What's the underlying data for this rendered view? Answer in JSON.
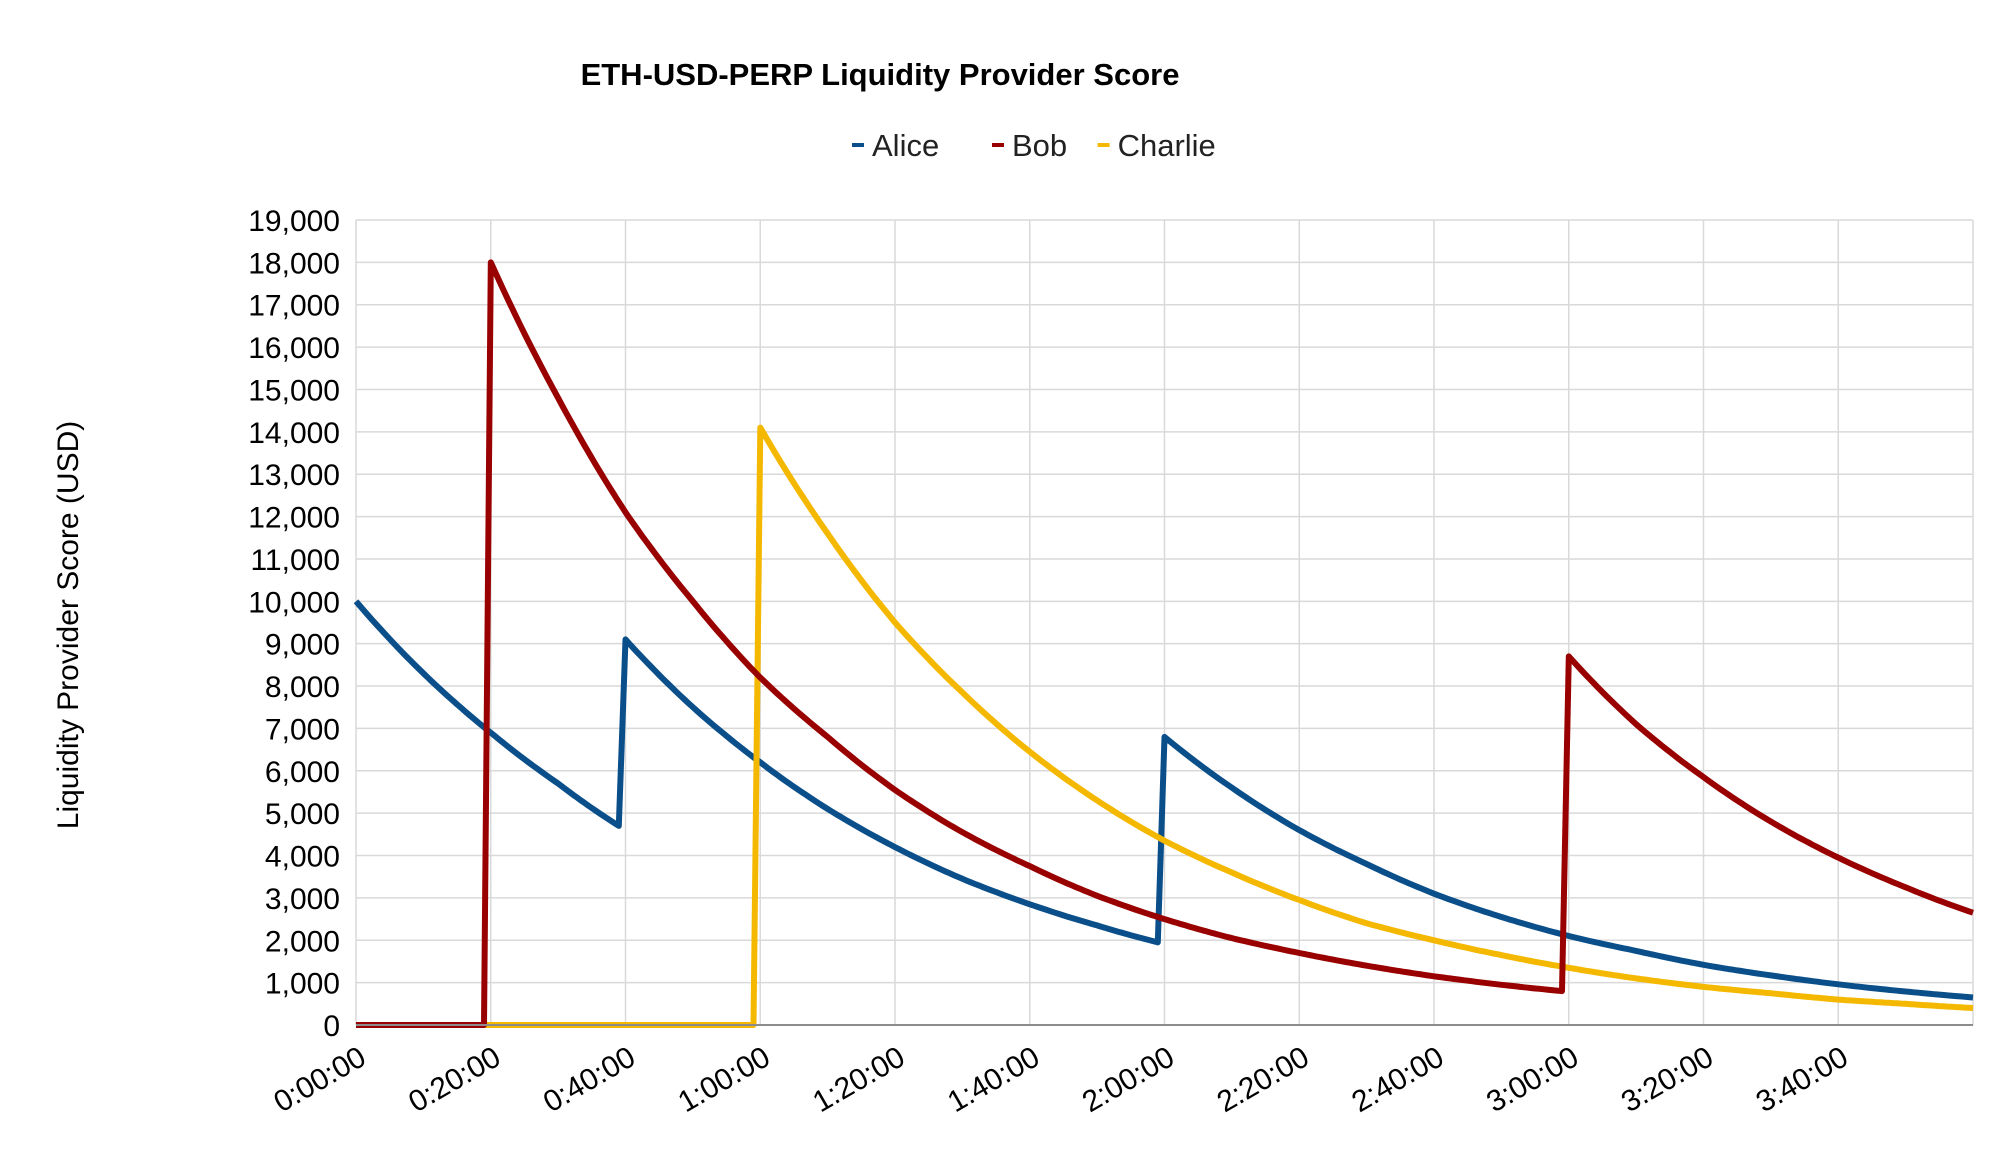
{
  "chart_data": {
    "type": "line",
    "title": "ETH-USD-PERP Liquidity Provider Score",
    "xlabel": "",
    "ylabel": "Liquidity Provider Score (USD)",
    "ylim": [
      0,
      19000
    ],
    "xlim_minutes": [
      0,
      240
    ],
    "y_ticks": [
      "0",
      "1,000",
      "2,000",
      "3,000",
      "4,000",
      "5,000",
      "6,000",
      "7,000",
      "8,000",
      "9,000",
      "10,000",
      "11,000",
      "12,000",
      "13,000",
      "14,000",
      "15,000",
      "16,000",
      "17,000",
      "18,000",
      "19,000"
    ],
    "x_ticks": [
      "0:00:00",
      "0:20:00",
      "0:40:00",
      "1:00:00",
      "1:20:00",
      "1:40:00",
      "2:00:00",
      "2:20:00",
      "2:40:00",
      "3:00:00",
      "3:20:00",
      "3:40:00"
    ],
    "grid": true,
    "legend_position": "top-center",
    "series": [
      {
        "name": "Alice",
        "color": "#0b4f8a",
        "points": [
          [
            "0:00:00",
            10000
          ],
          [
            "0:10:00",
            8300
          ],
          [
            "0:20:00",
            6900
          ],
          [
            "0:30:00",
            5700
          ],
          [
            "0:39:00",
            4700
          ],
          [
            "0:40:00",
            9100
          ],
          [
            "0:50:00",
            7500
          ],
          [
            "1:00:00",
            6200
          ],
          [
            "1:10:00",
            5100
          ],
          [
            "1:20:00",
            4200
          ],
          [
            "1:30:00",
            3450
          ],
          [
            "1:40:00",
            2850
          ],
          [
            "1:50:00",
            2350
          ],
          [
            "1:59:00",
            1950
          ],
          [
            "2:00:00",
            6800
          ],
          [
            "2:10:00",
            5600
          ],
          [
            "2:20:00",
            4600
          ],
          [
            "2:30:00",
            3800
          ],
          [
            "2:40:00",
            3100
          ],
          [
            "2:50:00",
            2550
          ],
          [
            "3:00:00",
            2100
          ],
          [
            "3:10:00",
            1750
          ],
          [
            "3:20:00",
            1420
          ],
          [
            "3:30:00",
            1170
          ],
          [
            "3:40:00",
            960
          ],
          [
            "3:50:00",
            790
          ],
          [
            "4:00:00",
            650
          ]
        ]
      },
      {
        "name": "Bob",
        "color": "#990000",
        "points": [
          [
            "0:00:00",
            0
          ],
          [
            "0:19:00",
            0
          ],
          [
            "0:20:00",
            18000
          ],
          [
            "0:30:00",
            14800
          ],
          [
            "0:40:00",
            12100
          ],
          [
            "0:50:00",
            10000
          ],
          [
            "1:00:00",
            8200
          ],
          [
            "1:10:00",
            6800
          ],
          [
            "1:20:00",
            5550
          ],
          [
            "1:30:00",
            4550
          ],
          [
            "1:40:00",
            3750
          ],
          [
            "1:50:00",
            3050
          ],
          [
            "2:00:00",
            2500
          ],
          [
            "2:10:00",
            2050
          ],
          [
            "2:20:00",
            1700
          ],
          [
            "2:30:00",
            1400
          ],
          [
            "2:40:00",
            1150
          ],
          [
            "2:50:00",
            950
          ],
          [
            "2:59:00",
            800
          ],
          [
            "3:00:00",
            8700
          ],
          [
            "3:10:00",
            7100
          ],
          [
            "3:20:00",
            5850
          ],
          [
            "3:30:00",
            4800
          ],
          [
            "3:40:00",
            3950
          ],
          [
            "3:50:00",
            3250
          ],
          [
            "4:00:00",
            2650
          ]
        ]
      },
      {
        "name": "Charlie",
        "color": "#f5b800",
        "points": [
          [
            "0:00:00",
            0
          ],
          [
            "0:59:00",
            0
          ],
          [
            "1:00:00",
            14100
          ],
          [
            "1:10:00",
            11600
          ],
          [
            "1:20:00",
            9500
          ],
          [
            "1:30:00",
            7850
          ],
          [
            "1:40:00",
            6450
          ],
          [
            "1:50:00",
            5300
          ],
          [
            "2:00:00",
            4350
          ],
          [
            "2:10:00",
            3600
          ],
          [
            "2:20:00",
            2950
          ],
          [
            "2:30:00",
            2400
          ],
          [
            "2:40:00",
            2000
          ],
          [
            "2:50:00",
            1650
          ],
          [
            "3:00:00",
            1350
          ],
          [
            "3:10:00",
            1100
          ],
          [
            "3:20:00",
            900
          ],
          [
            "3:30:00",
            750
          ],
          [
            "3:40:00",
            600
          ],
          [
            "3:50:00",
            500
          ],
          [
            "4:00:00",
            400
          ]
        ]
      }
    ]
  }
}
